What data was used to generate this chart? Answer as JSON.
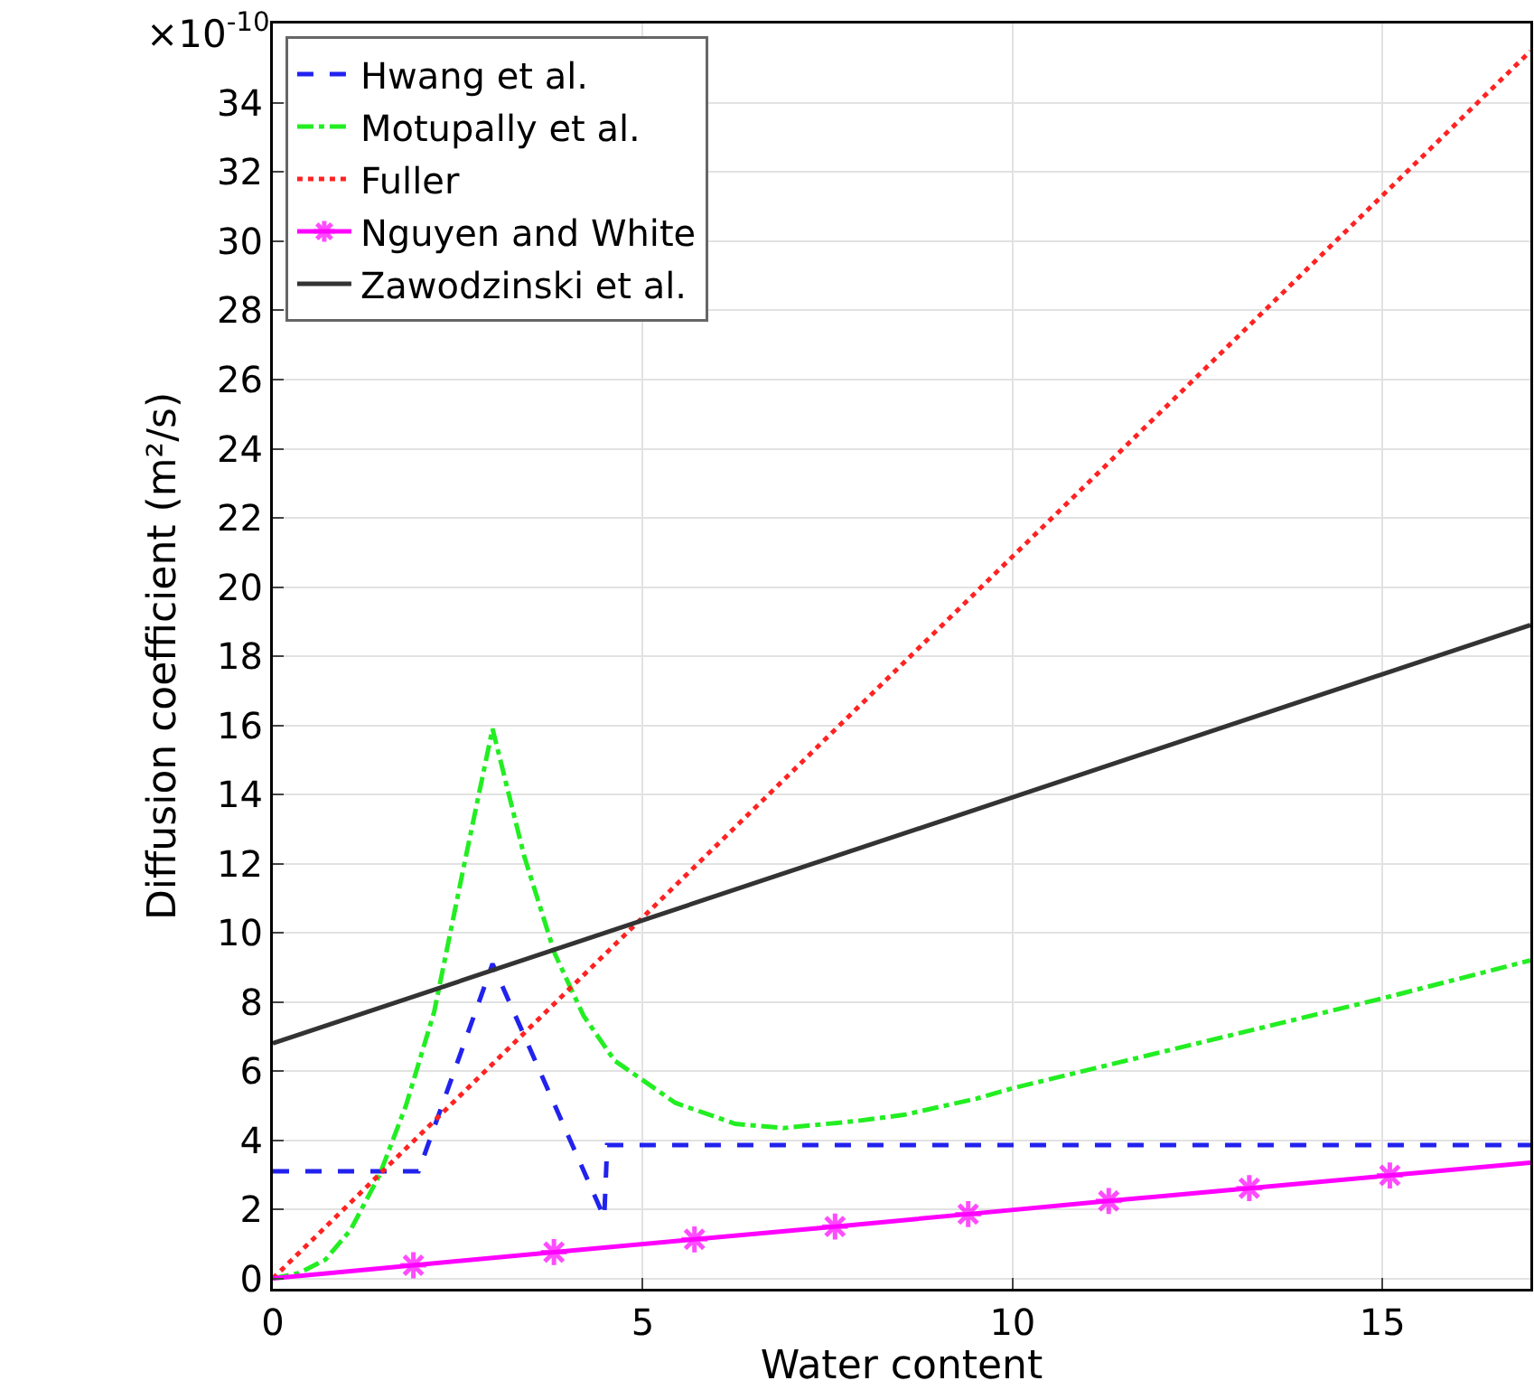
{
  "chart_data": {
    "type": "line",
    "xlabel": "Water content",
    "ylabel": "Diffusion coefficient (m²/s)",
    "annotations": [
      "×10$^{-10}$"
    ],
    "xlim": [
      0,
      17
    ],
    "ylim": [
      -0.3,
      36.3
    ],
    "xticks": [
      0,
      5,
      10,
      15
    ],
    "yticks": [
      0,
      2,
      4,
      6,
      8,
      10,
      12,
      14,
      16,
      18,
      20,
      22,
      24,
      26,
      28,
      30,
      32,
      34
    ],
    "grid": true,
    "legend": "top left",
    "series": [
      {
        "name": "Hwang et al.",
        "color": "#2222ee",
        "line_style": "dashed",
        "marker": "none",
        "x": [
          0,
          1.97,
          2.97,
          4.48,
          4.52,
          17
        ],
        "values": [
          3.1,
          3.1,
          9.1,
          1.76,
          3.86,
          3.86
        ]
      },
      {
        "name": "Motupally et al.",
        "color": "#22ee22",
        "line_style": "dashdot",
        "marker": "none",
        "x": [
          0,
          0.35,
          0.71,
          1.05,
          1.44,
          1.8,
          2.18,
          2.58,
          2.97,
          3.4,
          3.81,
          4.2,
          4.62,
          5.44,
          6.25,
          6.9,
          7.88,
          8.53,
          9.51,
          10,
          15,
          17
        ],
        "values": [
          0,
          0.15,
          0.54,
          1.4,
          2.98,
          5,
          7.7,
          11.9,
          15.9,
          12.2,
          9.4,
          7.6,
          6.3,
          5.08,
          4.47,
          4.35,
          4.55,
          4.73,
          5.2,
          5.5,
          8.1,
          9.2
        ]
      },
      {
        "name": "Fuller",
        "color": "#ff2222",
        "line_style": "dotted",
        "marker": "none",
        "x": [
          0,
          17
        ],
        "values": [
          0,
          35.5
        ]
      },
      {
        "name": "Nguyen and White",
        "color": "#ff00ff",
        "line_style": "solid",
        "marker": "cross",
        "x": [
          0,
          1.9,
          3.8,
          5.7,
          7.6,
          9.4,
          11.3,
          13.2,
          15.1,
          17
        ],
        "values": [
          0,
          0.38,
          0.76,
          1.13,
          1.5,
          1.86,
          2.24,
          2.61,
          2.98,
          3.35
        ]
      },
      {
        "name": "Zawodzinski et al.",
        "color": "#333333",
        "line_style": "solid",
        "marker": "none",
        "x": [
          0,
          17
        ],
        "values": [
          6.8,
          18.9
        ]
      }
    ]
  }
}
